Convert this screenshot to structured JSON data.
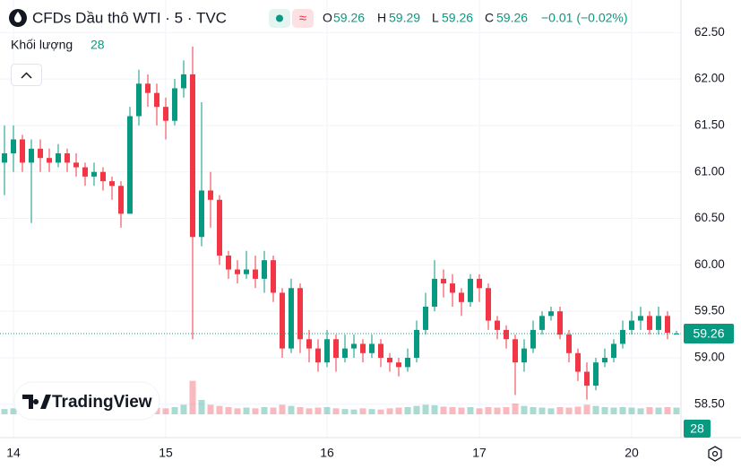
{
  "chart_data": {
    "type": "candlestick",
    "title": "CFDs Dầu thô WTI · 5 · TVC",
    "header": {
      "o": "O",
      "h": "H",
      "l": "L",
      "c": "C",
      "change": "−0.01 (−0.02%)"
    },
    "volume_label": "Khối lượng",
    "logo": "TradingView",
    "up_color": "#089981",
    "down_color": "#f23645",
    "grid": true,
    "categories": [
      null,
      "14",
      null,
      null,
      null,
      null,
      null,
      null,
      null,
      null,
      null,
      null,
      null,
      null,
      null,
      null,
      null,
      null,
      "15",
      null,
      null,
      null,
      null,
      null,
      null,
      null,
      null,
      null,
      null,
      null,
      null,
      null,
      null,
      null,
      null,
      null,
      "16",
      null,
      null,
      null,
      null,
      null,
      null,
      null,
      null,
      null,
      null,
      null,
      null,
      null,
      null,
      null,
      null,
      "17",
      null,
      null,
      null,
      null,
      null,
      null,
      null,
      null,
      null,
      null,
      null,
      null,
      null,
      null,
      null,
      null,
      "20",
      null,
      null,
      null,
      null,
      null
    ],
    "open": [
      61.1,
      61.2,
      61.35,
      61.1,
      61.25,
      61.15,
      61.1,
      61.2,
      61.1,
      61.05,
      60.95,
      61.0,
      60.9,
      60.85,
      60.55,
      61.6,
      61.95,
      61.85,
      61.7,
      61.55,
      61.9,
      62.05,
      60.3,
      60.8,
      60.7,
      60.1,
      59.95,
      59.9,
      59.95,
      59.85,
      60.05,
      59.7,
      59.1,
      59.75,
      59.2,
      59.1,
      58.95,
      59.2,
      59.0,
      59.1,
      59.15,
      59.05,
      59.15,
      59.0,
      58.95,
      58.9,
      59.0,
      59.3,
      59.55,
      59.85,
      59.8,
      59.7,
      59.6,
      59.85,
      59.75,
      59.4,
      59.3,
      59.2,
      58.95,
      59.1,
      59.3,
      59.45,
      59.5,
      59.25,
      59.05,
      58.85,
      58.7,
      58.95,
      59.0,
      59.15,
      59.3,
      59.4,
      59.45,
      59.3,
      59.45,
      59.26
    ],
    "high": [
      61.5,
      61.5,
      61.4,
      61.35,
      61.35,
      61.25,
      61.3,
      61.25,
      61.2,
      61.1,
      61.1,
      61.05,
      60.95,
      60.9,
      61.7,
      62.1,
      62.05,
      61.95,
      61.8,
      62.0,
      62.2,
      62.35,
      61.75,
      61.0,
      60.75,
      60.15,
      60.05,
      60.15,
      60.1,
      60.15,
      60.1,
      59.75,
      59.85,
      59.8,
      59.3,
      59.2,
      59.3,
      59.25,
      59.25,
      59.25,
      59.2,
      59.25,
      59.2,
      59.05,
      59.0,
      59.1,
      59.4,
      59.7,
      60.05,
      59.95,
      59.9,
      59.75,
      59.9,
      59.9,
      59.8,
      59.45,
      59.35,
      59.25,
      59.2,
      59.4,
      59.5,
      59.55,
      59.55,
      59.3,
      59.1,
      58.95,
      59.0,
      59.1,
      59.2,
      59.4,
      59.5,
      59.55,
      59.5,
      59.55,
      59.5,
      59.29
    ],
    "low": [
      60.75,
      61.0,
      61.0,
      60.45,
      61.0,
      61.0,
      61.05,
      61.0,
      60.95,
      60.85,
      60.85,
      60.8,
      60.7,
      60.4,
      60.55,
      61.5,
      61.7,
      61.5,
      61.35,
      61.5,
      61.8,
      59.2,
      60.2,
      60.4,
      60.0,
      59.85,
      59.8,
      59.85,
      59.75,
      59.7,
      59.6,
      59.0,
      59.05,
      59.05,
      58.95,
      58.85,
      58.9,
      58.85,
      58.95,
      59.0,
      58.95,
      59.0,
      58.9,
      58.85,
      58.8,
      58.85,
      58.95,
      59.25,
      59.5,
      59.65,
      59.55,
      59.45,
      59.55,
      59.6,
      59.3,
      59.2,
      59.1,
      58.6,
      58.85,
      59.05,
      59.25,
      59.4,
      59.2,
      58.95,
      58.75,
      58.55,
      58.65,
      58.9,
      58.95,
      59.1,
      59.25,
      59.3,
      59.25,
      59.25,
      59.2,
      59.26
    ],
    "close": [
      61.2,
      61.35,
      61.1,
      61.25,
      61.15,
      61.1,
      61.2,
      61.1,
      61.05,
      60.95,
      61.0,
      60.9,
      60.85,
      60.55,
      61.6,
      61.95,
      61.85,
      61.7,
      61.55,
      61.9,
      62.05,
      60.3,
      60.8,
      60.7,
      60.1,
      59.95,
      59.9,
      59.95,
      59.85,
      60.05,
      59.7,
      59.1,
      59.75,
      59.2,
      59.1,
      58.95,
      59.2,
      59.0,
      59.1,
      59.15,
      59.05,
      59.15,
      59.0,
      58.95,
      58.9,
      59.0,
      59.3,
      59.55,
      59.85,
      59.8,
      59.7,
      59.6,
      59.85,
      59.75,
      59.4,
      59.3,
      59.2,
      58.95,
      59.1,
      59.3,
      59.45,
      59.5,
      59.25,
      59.05,
      58.85,
      58.7,
      58.95,
      59.0,
      59.15,
      59.3,
      59.4,
      59.45,
      59.3,
      59.45,
      59.27,
      59.26
    ],
    "volume": [
      22,
      25,
      20,
      30,
      18,
      20,
      22,
      18,
      20,
      24,
      18,
      20,
      22,
      30,
      45,
      35,
      30,
      28,
      25,
      30,
      40,
      140,
      60,
      40,
      35,
      30,
      25,
      28,
      25,
      30,
      28,
      40,
      35,
      30,
      25,
      28,
      30,
      25,
      22,
      20,
      25,
      22,
      20,
      25,
      28,
      30,
      35,
      40,
      38,
      32,
      30,
      28,
      30,
      25,
      30,
      28,
      30,
      45,
      35,
      30,
      28,
      25,
      30,
      28,
      32,
      40,
      35,
      30,
      28,
      30,
      28,
      25,
      30,
      28,
      30,
      28
    ],
    "ylim": [
      58.17,
      62.85
    ],
    "yticks": [
      {
        "value": 58.5,
        "label": "58.50"
      },
      {
        "value": 59,
        "label": "59.00"
      },
      {
        "value": 59.5,
        "label": "59.50"
      },
      {
        "value": 60,
        "label": "60.00"
      },
      {
        "value": 60.5,
        "label": "60.50"
      },
      {
        "value": 61,
        "label": "61.00"
      },
      {
        "value": 61.5,
        "label": "61.50"
      },
      {
        "value": 62,
        "label": "62.00"
      },
      {
        "value": 62.5,
        "label": "62.50"
      }
    ],
    "vlim": [
      0,
      150
    ]
  }
}
